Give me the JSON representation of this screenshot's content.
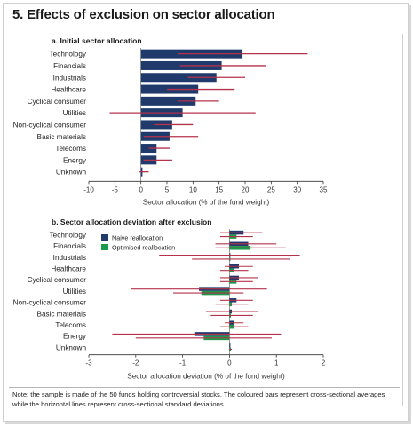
{
  "title": "5. Effects of exclusion on sector allocation",
  "note": "Note: the sample is made of the 50 funds holding controversial stocks. The coloured bars represent cross-sectional averages while the horizontal lines represent cross-sectional standard deviations.",
  "colors": {
    "naive": "#1f3a6b",
    "optimised": "#1a9a4a",
    "stdev": "#b4334b",
    "axis": "#333333"
  },
  "chart_data": [
    {
      "type": "bar",
      "orientation": "horizontal",
      "title": "a.  Initial sector allocation",
      "xlabel": "Sector allocation (% of the fund weight)",
      "xlim": [
        -10,
        35
      ],
      "xticks": [
        "-10",
        "-5",
        "0",
        "5",
        "10",
        "15",
        "20",
        "25",
        "30",
        "35"
      ],
      "categories": [
        "Technology",
        "Financials",
        "Industrials",
        "Healthcare",
        "Cyclical consumer",
        "Utilities",
        "Non-cyclical consumer",
        "Basic materials",
        "Telecoms",
        "Energy",
        "Unknown"
      ],
      "series": [
        {
          "values": [
            19.5,
            15.5,
            14.5,
            11.0,
            10.5,
            8.0,
            6.0,
            5.5,
            3.0,
            3.0,
            0.3
          ]
        }
      ],
      "stdev_ranges": [
        [
          7,
          32
        ],
        [
          7.5,
          24
        ],
        [
          9,
          20
        ],
        [
          5,
          18
        ],
        [
          7,
          15
        ],
        [
          -6,
          22
        ],
        [
          2.5,
          10
        ],
        [
          0.5,
          11
        ],
        [
          1.5,
          5.5
        ],
        [
          0.5,
          6
        ],
        [
          -0.3,
          1.5
        ]
      ]
    },
    {
      "type": "bar",
      "orientation": "horizontal",
      "title": "b.  Sector allocation deviation after exclusion",
      "xlabel": "Sector allocation deviation (% of the fund weight)",
      "xlim": [
        -3,
        2
      ],
      "xticks": [
        "-3",
        "-2",
        "-1",
        "0",
        "1",
        "2"
      ],
      "categories": [
        "Technology",
        "Financials",
        "Industrials",
        "Healthcare",
        "Cyclical consumer",
        "Utilities",
        "Non-cyclical consumer",
        "Basic materials",
        "Telecoms",
        "Energy",
        "Unknown"
      ],
      "series": [
        {
          "name": "Naive reallocation",
          "values": [
            0.3,
            0.4,
            0.0,
            0.2,
            0.2,
            -0.65,
            0.15,
            0.05,
            0.1,
            -0.75,
            0.0
          ]
        },
        {
          "name": "Optimised reallocation",
          "values": [
            0.15,
            0.45,
            0.0,
            0.1,
            0.15,
            -0.6,
            0.05,
            0.03,
            0.1,
            -0.55,
            0.03
          ]
        }
      ],
      "stdev_ranges": {
        "naive": [
          [
            -0.2,
            0.7
          ],
          [
            -0.3,
            1.0
          ],
          [
            -1.5,
            1.5
          ],
          [
            -0.1,
            0.5
          ],
          [
            -0.2,
            0.6
          ],
          [
            -2.1,
            0.8
          ],
          [
            -0.2,
            0.5
          ],
          [
            -0.5,
            0.6
          ],
          [
            -0.1,
            0.3
          ],
          [
            -2.5,
            1.1
          ],
          [
            0,
            0
          ]
        ],
        "optimised": [
          [
            -0.2,
            0.5
          ],
          [
            -0.3,
            1.2
          ],
          [
            -0.8,
            1.3
          ],
          [
            -0.2,
            0.4
          ],
          [
            -0.2,
            0.5
          ],
          [
            -1.2,
            0.3
          ],
          [
            -0.3,
            0.4
          ],
          [
            -0.4,
            0.5
          ],
          [
            -0.2,
            0.4
          ],
          [
            -2.0,
            0.9
          ],
          [
            0,
            0.05
          ]
        ]
      },
      "legend": "top-left"
    }
  ]
}
